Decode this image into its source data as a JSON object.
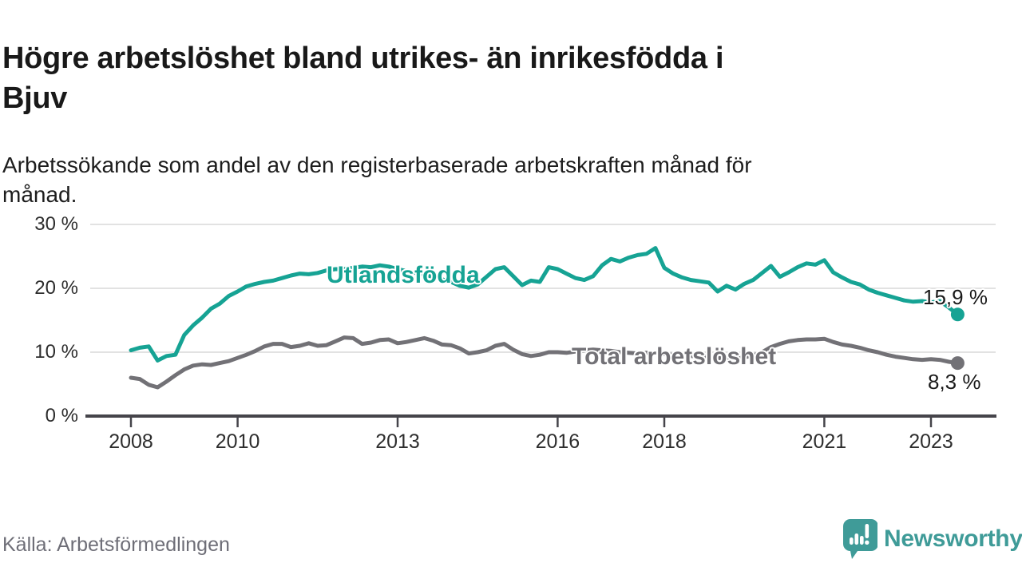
{
  "header": {
    "title": "Högre arbetslöshet bland utrikes- än inrikesfödda i Bjuv",
    "title_line1": "Högre arbetslöshet bland utrikes- än inrikesfödda i",
    "title_line2": "Bjuv",
    "subtitle_line1": "Arbetssökande som andel av den registerbaserade arbetskraften månad för",
    "subtitle_line2": "månad."
  },
  "footer": {
    "source": "Källa: Arbetsförmedlingen",
    "brand": "Newsworthy",
    "brand_color": "#3f9b98"
  },
  "chart_data": {
    "type": "line",
    "title": "Högre arbetslöshet bland utrikes- än inrikesfödda i Bjuv",
    "subtitle": "Arbetssökande som andel av den registerbaserade arbetskraften månad för månad.",
    "unit": "%",
    "grid": true,
    "ylim": [
      0,
      30
    ],
    "x_range_years": [
      2008.0,
      2023.5
    ],
    "colors": {
      "grid": "#d8d8d8",
      "axis": "#45444a",
      "teal": "#16a394",
      "gray": "#727176",
      "value_label": "#1a1a1a"
    },
    "y_axis": {
      "ticks": [
        {
          "value": 0,
          "label": "0 %"
        },
        {
          "value": 10,
          "label": "10 %"
        },
        {
          "value": 20,
          "label": "20 %"
        },
        {
          "value": 30,
          "label": "30 %"
        }
      ]
    },
    "x_axis": {
      "ticks": [
        {
          "value": 2008,
          "label": "2008"
        },
        {
          "value": 2010,
          "label": "2010"
        },
        {
          "value": 2013,
          "label": "2013"
        },
        {
          "value": 2016,
          "label": "2016"
        },
        {
          "value": 2018,
          "label": "2018"
        },
        {
          "value": 2021,
          "label": "2021"
        },
        {
          "value": 2023,
          "label": "2023"
        }
      ]
    },
    "series": [
      {
        "name": "Utlandsfödda",
        "color": "#16a394",
        "end_label": "15,9 %",
        "end_value": 15.9,
        "x_start": 2008.0,
        "x_step_years": 0.166667,
        "values": [
          10.3,
          10.7,
          10.9,
          8.7,
          9.4,
          9.6,
          12.7,
          14.2,
          15.4,
          16.8,
          17.6,
          18.8,
          19.5,
          20.3,
          20.7,
          21.0,
          21.2,
          21.6,
          22.0,
          22.3,
          22.2,
          22.4,
          22.8,
          23.0,
          23.0,
          23.2,
          23.4,
          23.3,
          23.6,
          23.4,
          23.0,
          22.7,
          22.4,
          22.1,
          21.8,
          21.4,
          21.0,
          20.4,
          20.1,
          20.6,
          21.8,
          23.0,
          23.3,
          21.9,
          20.5,
          21.2,
          21.0,
          23.3,
          23.0,
          22.3,
          21.6,
          21.3,
          21.9,
          23.6,
          24.6,
          24.2,
          24.8,
          25.2,
          25.4,
          26.3,
          23.2,
          22.3,
          21.7,
          21.3,
          21.1,
          20.9,
          19.5,
          20.4,
          19.8,
          20.7,
          21.3,
          22.4,
          23.5,
          21.8,
          22.5,
          23.3,
          23.9,
          23.7,
          24.4,
          22.5,
          21.7,
          21.0,
          20.6,
          19.8,
          19.3,
          18.9,
          18.5,
          18.1,
          17.9,
          18.0,
          17.8,
          18.0,
          17.0,
          15.9
        ]
      },
      {
        "name": "Total arbetslöshet",
        "color": "#727176",
        "end_label": "8,3 %",
        "end_value": 8.3,
        "x_start": 2008.0,
        "x_step_years": 0.166667,
        "values": [
          6.0,
          5.8,
          4.9,
          4.5,
          5.4,
          6.4,
          7.3,
          7.9,
          8.1,
          8.0,
          8.3,
          8.6,
          9.1,
          9.6,
          10.2,
          10.9,
          11.3,
          11.3,
          10.8,
          11.0,
          11.4,
          11.0,
          11.1,
          11.7,
          12.3,
          12.2,
          11.3,
          11.5,
          11.9,
          12.0,
          11.4,
          11.6,
          11.9,
          12.2,
          11.8,
          11.2,
          11.1,
          10.6,
          9.8,
          10.0,
          10.3,
          11.0,
          11.3,
          10.4,
          9.7,
          9.4,
          9.6,
          10.0,
          10.0,
          9.9,
          10.1,
          10.3,
          10.4,
          10.3,
          10.2,
          10.0,
          9.9,
          9.8,
          9.9,
          9.9,
          9.7,
          9.6,
          9.5,
          9.4,
          9.3,
          9.2,
          9.1,
          9.0,
          9.0,
          9.2,
          9.5,
          10.0,
          10.8,
          11.3,
          11.7,
          11.9,
          12.0,
          12.0,
          12.1,
          11.6,
          11.2,
          11.0,
          10.7,
          10.3,
          10.0,
          9.6,
          9.3,
          9.1,
          8.9,
          8.8,
          8.9,
          8.8,
          8.5,
          8.3
        ]
      }
    ]
  }
}
